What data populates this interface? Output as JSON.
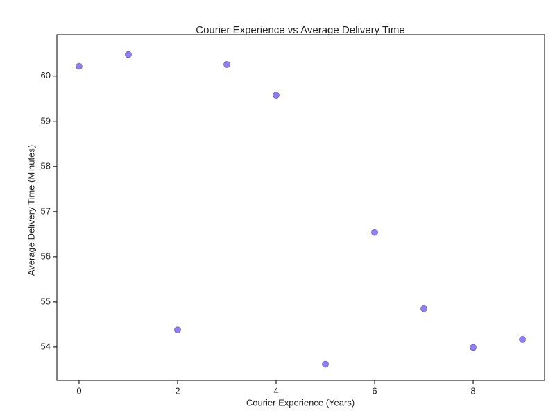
{
  "chart_data": {
    "type": "scatter",
    "title": "Courier Experience vs Average Delivery Time",
    "x_label": "Courier Experience (Years)",
    "y_label": "Average Delivery Time (Minutes)",
    "x": [
      0,
      1,
      2,
      3,
      4,
      5,
      6,
      7,
      8,
      9
    ],
    "series": [
      {
        "color": "#7b68ee",
        "values": [
          60.22,
          60.48,
          54.38,
          60.26,
          59.58,
          53.62,
          56.54,
          54.85,
          53.99,
          54.17
        ]
      }
    ],
    "xlim": [
      -0.45,
      9.45
    ],
    "xticks": [
      0,
      2,
      4,
      6,
      8
    ],
    "ylim": [
      53.26,
      60.92
    ],
    "yticks": [
      54,
      55,
      56,
      57,
      58,
      59,
      60
    ],
    "grid": false
  }
}
